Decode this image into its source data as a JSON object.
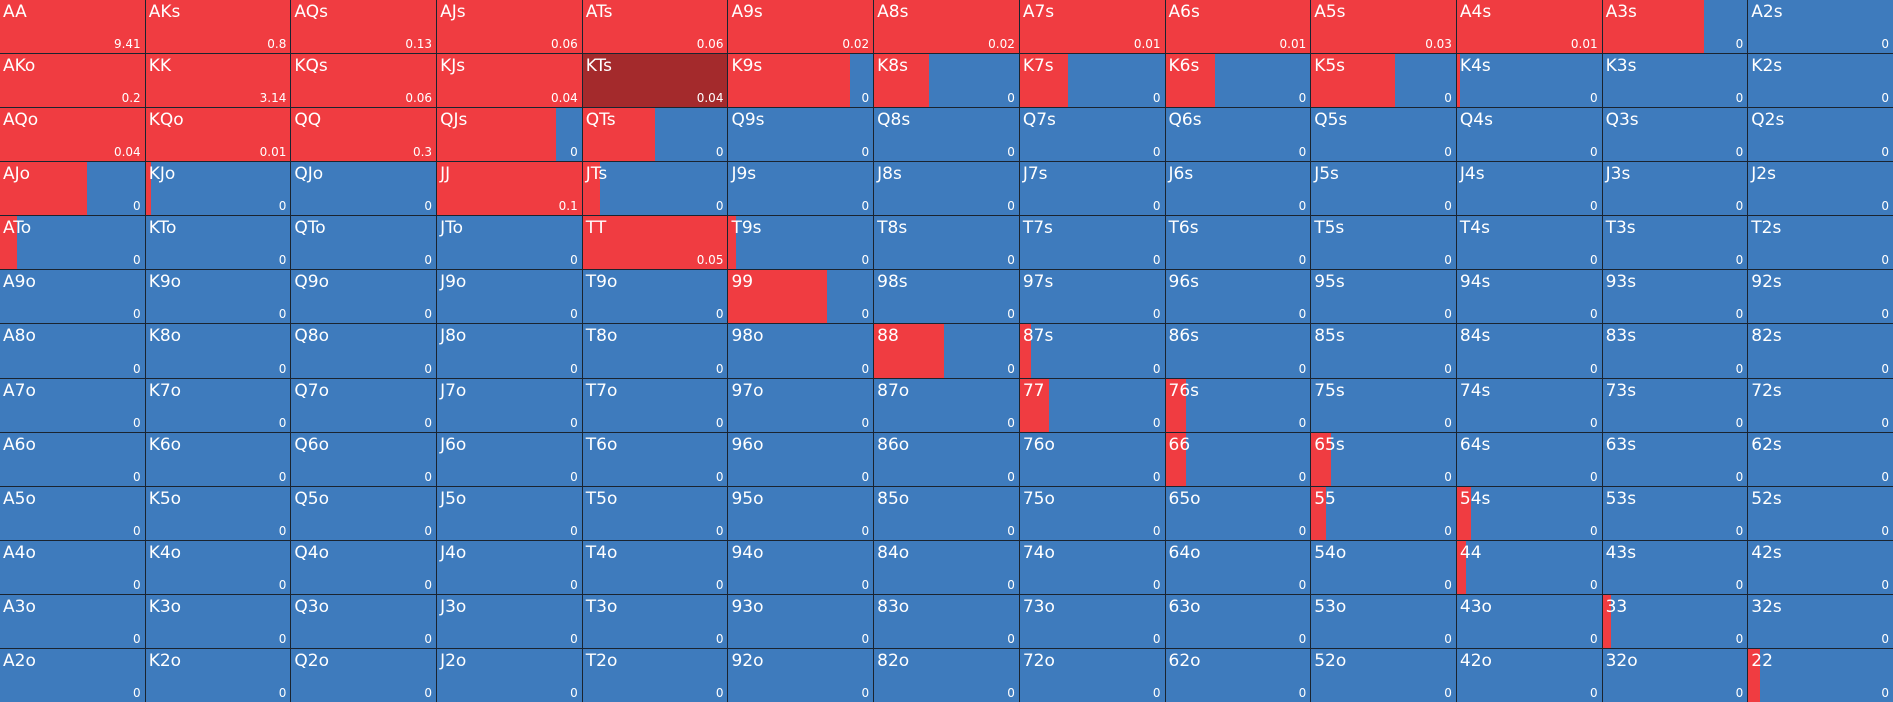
{
  "colors": {
    "fold": "#3e7bbd",
    "raise": "#f03c41",
    "selected": "#a42a2c"
  },
  "selected_hand": "KTs",
  "grid": [
    [
      {
        "hand": "AA",
        "value": "9.41",
        "freq": 1.0
      },
      {
        "hand": "AKs",
        "value": "0.8",
        "freq": 1.0
      },
      {
        "hand": "AQs",
        "value": "0.13",
        "freq": 1.0
      },
      {
        "hand": "AJs",
        "value": "0.06",
        "freq": 1.0
      },
      {
        "hand": "ATs",
        "value": "0.06",
        "freq": 1.0
      },
      {
        "hand": "A9s",
        "value": "0.02",
        "freq": 1.0
      },
      {
        "hand": "A8s",
        "value": "0.02",
        "freq": 1.0
      },
      {
        "hand": "A7s",
        "value": "0.01",
        "freq": 1.0
      },
      {
        "hand": "A6s",
        "value": "0.01",
        "freq": 1.0
      },
      {
        "hand": "A5s",
        "value": "0.03",
        "freq": 1.0
      },
      {
        "hand": "A4s",
        "value": "0.01",
        "freq": 1.0
      },
      {
        "hand": "A3s",
        "value": "0",
        "freq": 0.7
      },
      {
        "hand": "A2s",
        "value": "0",
        "freq": 0.0
      }
    ],
    [
      {
        "hand": "AKo",
        "value": "0.2",
        "freq": 1.0
      },
      {
        "hand": "KK",
        "value": "3.14",
        "freq": 1.0
      },
      {
        "hand": "KQs",
        "value": "0.06",
        "freq": 1.0
      },
      {
        "hand": "KJs",
        "value": "0.04",
        "freq": 1.0
      },
      {
        "hand": "KTs",
        "value": "0.04",
        "freq": 1.0
      },
      {
        "hand": "K9s",
        "value": "0",
        "freq": 0.84
      },
      {
        "hand": "K8s",
        "value": "0",
        "freq": 0.38
      },
      {
        "hand": "K7s",
        "value": "0",
        "freq": 0.33
      },
      {
        "hand": "K6s",
        "value": "0",
        "freq": 0.34
      },
      {
        "hand": "K5s",
        "value": "0",
        "freq": 0.58
      },
      {
        "hand": "K4s",
        "value": "0",
        "freq": 0.02
      },
      {
        "hand": "K3s",
        "value": "0",
        "freq": 0.0
      },
      {
        "hand": "K2s",
        "value": "0",
        "freq": 0.0
      }
    ],
    [
      {
        "hand": "AQo",
        "value": "0.04",
        "freq": 1.0
      },
      {
        "hand": "KQo",
        "value": "0.01",
        "freq": 1.0
      },
      {
        "hand": "QQ",
        "value": "0.3",
        "freq": 1.0
      },
      {
        "hand": "QJs",
        "value": "0",
        "freq": 0.82
      },
      {
        "hand": "QTs",
        "value": "0",
        "freq": 0.5
      },
      {
        "hand": "Q9s",
        "value": "0",
        "freq": 0.0
      },
      {
        "hand": "Q8s",
        "value": "0",
        "freq": 0.0
      },
      {
        "hand": "Q7s",
        "value": "0",
        "freq": 0.0
      },
      {
        "hand": "Q6s",
        "value": "0",
        "freq": 0.0
      },
      {
        "hand": "Q5s",
        "value": "0",
        "freq": 0.0
      },
      {
        "hand": "Q4s",
        "value": "0",
        "freq": 0.0
      },
      {
        "hand": "Q3s",
        "value": "0",
        "freq": 0.0
      },
      {
        "hand": "Q2s",
        "value": "0",
        "freq": 0.0
      }
    ],
    [
      {
        "hand": "AJo",
        "value": "0",
        "freq": 0.6
      },
      {
        "hand": "KJo",
        "value": "0",
        "freq": 0.04
      },
      {
        "hand": "QJo",
        "value": "0",
        "freq": 0.0
      },
      {
        "hand": "JJ",
        "value": "0.1",
        "freq": 1.0
      },
      {
        "hand": "JTs",
        "value": "0",
        "freq": 0.12
      },
      {
        "hand": "J9s",
        "value": "0",
        "freq": 0.0
      },
      {
        "hand": "J8s",
        "value": "0",
        "freq": 0.0
      },
      {
        "hand": "J7s",
        "value": "0",
        "freq": 0.0
      },
      {
        "hand": "J6s",
        "value": "0",
        "freq": 0.0
      },
      {
        "hand": "J5s",
        "value": "0",
        "freq": 0.0
      },
      {
        "hand": "J4s",
        "value": "0",
        "freq": 0.0
      },
      {
        "hand": "J3s",
        "value": "0",
        "freq": 0.0
      },
      {
        "hand": "J2s",
        "value": "0",
        "freq": 0.0
      }
    ],
    [
      {
        "hand": "ATo",
        "value": "0",
        "freq": 0.12
      },
      {
        "hand": "KTo",
        "value": "0",
        "freq": 0.0
      },
      {
        "hand": "QTo",
        "value": "0",
        "freq": 0.0
      },
      {
        "hand": "JTo",
        "value": "0",
        "freq": 0.0
      },
      {
        "hand": "TT",
        "value": "0.05",
        "freq": 1.0
      },
      {
        "hand": "T9s",
        "value": "0",
        "freq": 0.05
      },
      {
        "hand": "T8s",
        "value": "0",
        "freq": 0.0
      },
      {
        "hand": "T7s",
        "value": "0",
        "freq": 0.0
      },
      {
        "hand": "T6s",
        "value": "0",
        "freq": 0.0
      },
      {
        "hand": "T5s",
        "value": "0",
        "freq": 0.0
      },
      {
        "hand": "T4s",
        "value": "0",
        "freq": 0.0
      },
      {
        "hand": "T3s",
        "value": "0",
        "freq": 0.0
      },
      {
        "hand": "T2s",
        "value": "0",
        "freq": 0.0
      }
    ],
    [
      {
        "hand": "A9o",
        "value": "0",
        "freq": 0.0
      },
      {
        "hand": "K9o",
        "value": "0",
        "freq": 0.0
      },
      {
        "hand": "Q9o",
        "value": "0",
        "freq": 0.0
      },
      {
        "hand": "J9o",
        "value": "0",
        "freq": 0.0
      },
      {
        "hand": "T9o",
        "value": "0",
        "freq": 0.0
      },
      {
        "hand": "99",
        "value": "0",
        "freq": 0.68
      },
      {
        "hand": "98s",
        "value": "0",
        "freq": 0.0
      },
      {
        "hand": "97s",
        "value": "0",
        "freq": 0.0
      },
      {
        "hand": "96s",
        "value": "0",
        "freq": 0.0
      },
      {
        "hand": "95s",
        "value": "0",
        "freq": 0.0
      },
      {
        "hand": "94s",
        "value": "0",
        "freq": 0.0
      },
      {
        "hand": "93s",
        "value": "0",
        "freq": 0.0
      },
      {
        "hand": "92s",
        "value": "0",
        "freq": 0.0
      }
    ],
    [
      {
        "hand": "A8o",
        "value": "0",
        "freq": 0.0
      },
      {
        "hand": "K8o",
        "value": "0",
        "freq": 0.0
      },
      {
        "hand": "Q8o",
        "value": "0",
        "freq": 0.0
      },
      {
        "hand": "J8o",
        "value": "0",
        "freq": 0.0
      },
      {
        "hand": "T8o",
        "value": "0",
        "freq": 0.0
      },
      {
        "hand": "98o",
        "value": "0",
        "freq": 0.0
      },
      {
        "hand": "88",
        "value": "0",
        "freq": 0.48
      },
      {
        "hand": "87s",
        "value": "0",
        "freq": 0.08
      },
      {
        "hand": "86s",
        "value": "0",
        "freq": 0.0
      },
      {
        "hand": "85s",
        "value": "0",
        "freq": 0.0
      },
      {
        "hand": "84s",
        "value": "0",
        "freq": 0.0
      },
      {
        "hand": "83s",
        "value": "0",
        "freq": 0.0
      },
      {
        "hand": "82s",
        "value": "0",
        "freq": 0.0
      }
    ],
    [
      {
        "hand": "A7o",
        "value": "0",
        "freq": 0.0
      },
      {
        "hand": "K7o",
        "value": "0",
        "freq": 0.0
      },
      {
        "hand": "Q7o",
        "value": "0",
        "freq": 0.0
      },
      {
        "hand": "J7o",
        "value": "0",
        "freq": 0.0
      },
      {
        "hand": "T7o",
        "value": "0",
        "freq": 0.0
      },
      {
        "hand": "97o",
        "value": "0",
        "freq": 0.0
      },
      {
        "hand": "87o",
        "value": "0",
        "freq": 0.0
      },
      {
        "hand": "77",
        "value": "0",
        "freq": 0.2
      },
      {
        "hand": "76s",
        "value": "0",
        "freq": 0.14
      },
      {
        "hand": "75s",
        "value": "0",
        "freq": 0.0
      },
      {
        "hand": "74s",
        "value": "0",
        "freq": 0.0
      },
      {
        "hand": "73s",
        "value": "0",
        "freq": 0.0
      },
      {
        "hand": "72s",
        "value": "0",
        "freq": 0.0
      }
    ],
    [
      {
        "hand": "A6o",
        "value": "0",
        "freq": 0.0
      },
      {
        "hand": "K6o",
        "value": "0",
        "freq": 0.0
      },
      {
        "hand": "Q6o",
        "value": "0",
        "freq": 0.0
      },
      {
        "hand": "J6o",
        "value": "0",
        "freq": 0.0
      },
      {
        "hand": "T6o",
        "value": "0",
        "freq": 0.0
      },
      {
        "hand": "96o",
        "value": "0",
        "freq": 0.0
      },
      {
        "hand": "86o",
        "value": "0",
        "freq": 0.0
      },
      {
        "hand": "76o",
        "value": "0",
        "freq": 0.0
      },
      {
        "hand": "66",
        "value": "0",
        "freq": 0.14
      },
      {
        "hand": "65s",
        "value": "0",
        "freq": 0.14
      },
      {
        "hand": "64s",
        "value": "0",
        "freq": 0.0
      },
      {
        "hand": "63s",
        "value": "0",
        "freq": 0.0
      },
      {
        "hand": "62s",
        "value": "0",
        "freq": 0.0
      }
    ],
    [
      {
        "hand": "A5o",
        "value": "0",
        "freq": 0.0
      },
      {
        "hand": "K5o",
        "value": "0",
        "freq": 0.0
      },
      {
        "hand": "Q5o",
        "value": "0",
        "freq": 0.0
      },
      {
        "hand": "J5o",
        "value": "0",
        "freq": 0.0
      },
      {
        "hand": "T5o",
        "value": "0",
        "freq": 0.0
      },
      {
        "hand": "95o",
        "value": "0",
        "freq": 0.0
      },
      {
        "hand": "85o",
        "value": "0",
        "freq": 0.0
      },
      {
        "hand": "75o",
        "value": "0",
        "freq": 0.0
      },
      {
        "hand": "65o",
        "value": "0",
        "freq": 0.0
      },
      {
        "hand": "55",
        "value": "0",
        "freq": 0.1
      },
      {
        "hand": "54s",
        "value": "0",
        "freq": 0.1
      },
      {
        "hand": "53s",
        "value": "0",
        "freq": 0.0
      },
      {
        "hand": "52s",
        "value": "0",
        "freq": 0.0
      }
    ],
    [
      {
        "hand": "A4o",
        "value": "0",
        "freq": 0.0
      },
      {
        "hand": "K4o",
        "value": "0",
        "freq": 0.0
      },
      {
        "hand": "Q4o",
        "value": "0",
        "freq": 0.0
      },
      {
        "hand": "J4o",
        "value": "0",
        "freq": 0.0
      },
      {
        "hand": "T4o",
        "value": "0",
        "freq": 0.0
      },
      {
        "hand": "94o",
        "value": "0",
        "freq": 0.0
      },
      {
        "hand": "84o",
        "value": "0",
        "freq": 0.0
      },
      {
        "hand": "74o",
        "value": "0",
        "freq": 0.0
      },
      {
        "hand": "64o",
        "value": "0",
        "freq": 0.0
      },
      {
        "hand": "54o",
        "value": "0",
        "freq": 0.0
      },
      {
        "hand": "44",
        "value": "0",
        "freq": 0.06
      },
      {
        "hand": "43s",
        "value": "0",
        "freq": 0.0
      },
      {
        "hand": "42s",
        "value": "0",
        "freq": 0.0
      }
    ],
    [
      {
        "hand": "A3o",
        "value": "0",
        "freq": 0.0
      },
      {
        "hand": "K3o",
        "value": "0",
        "freq": 0.0
      },
      {
        "hand": "Q3o",
        "value": "0",
        "freq": 0.0
      },
      {
        "hand": "J3o",
        "value": "0",
        "freq": 0.0
      },
      {
        "hand": "T3o",
        "value": "0",
        "freq": 0.0
      },
      {
        "hand": "93o",
        "value": "0",
        "freq": 0.0
      },
      {
        "hand": "83o",
        "value": "0",
        "freq": 0.0
      },
      {
        "hand": "73o",
        "value": "0",
        "freq": 0.0
      },
      {
        "hand": "63o",
        "value": "0",
        "freq": 0.0
      },
      {
        "hand": "53o",
        "value": "0",
        "freq": 0.0
      },
      {
        "hand": "43o",
        "value": "0",
        "freq": 0.0
      },
      {
        "hand": "33",
        "value": "0",
        "freq": 0.06
      },
      {
        "hand": "32s",
        "value": "0",
        "freq": 0.0
      }
    ],
    [
      {
        "hand": "A2o",
        "value": "0",
        "freq": 0.0
      },
      {
        "hand": "K2o",
        "value": "0",
        "freq": 0.0
      },
      {
        "hand": "Q2o",
        "value": "0",
        "freq": 0.0
      },
      {
        "hand": "J2o",
        "value": "0",
        "freq": 0.0
      },
      {
        "hand": "T2o",
        "value": "0",
        "freq": 0.0
      },
      {
        "hand": "92o",
        "value": "0",
        "freq": 0.0
      },
      {
        "hand": "82o",
        "value": "0",
        "freq": 0.0
      },
      {
        "hand": "72o",
        "value": "0",
        "freq": 0.0
      },
      {
        "hand": "62o",
        "value": "0",
        "freq": 0.0
      },
      {
        "hand": "52o",
        "value": "0",
        "freq": 0.0
      },
      {
        "hand": "42o",
        "value": "0",
        "freq": 0.0
      },
      {
        "hand": "32o",
        "value": "0",
        "freq": 0.0
      },
      {
        "hand": "22",
        "value": "0",
        "freq": 0.08
      }
    ]
  ]
}
